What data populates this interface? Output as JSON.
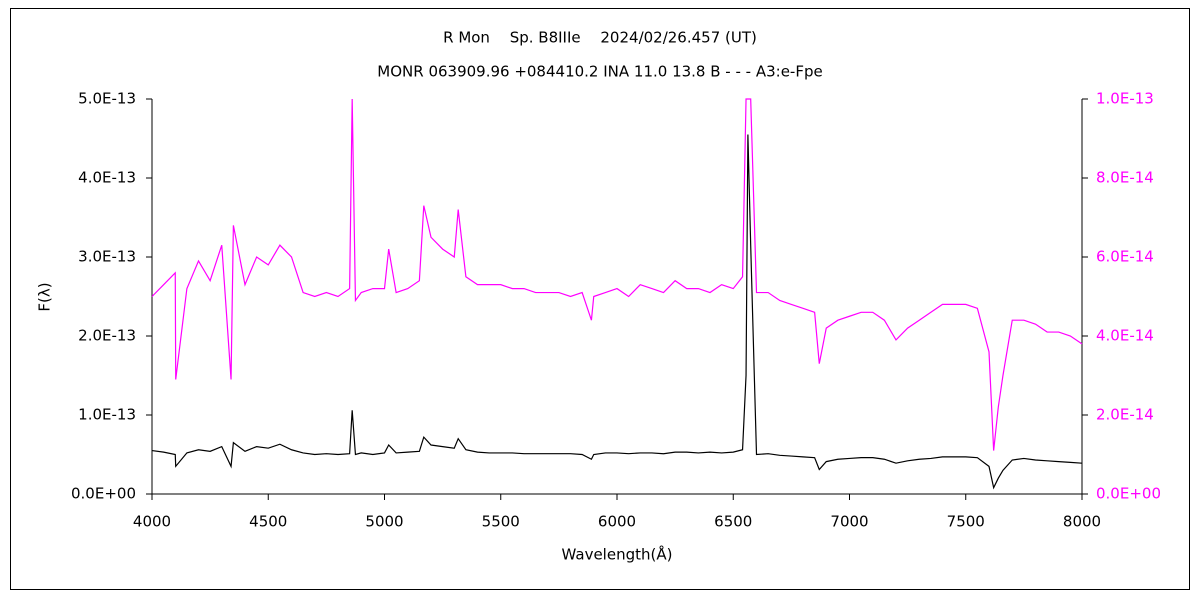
{
  "chart_data": {
    "type": "line",
    "title": "R Mon　 Sp. B8IIIe　 2024/02/26.457 (UT)",
    "subtitle": "MONR 063909.96 +084410.2 INA 11.0 13.8 B - - - A3:e-Fpe",
    "x_label": "Wavelength(Å)",
    "y_label": "F(λ)",
    "xlim": [
      4000,
      8000
    ],
    "xticks": [
      4000,
      4500,
      5000,
      5500,
      6000,
      6500,
      7000,
      7500,
      8000
    ],
    "ylim": [
      0,
      5e-13
    ],
    "yticks": [
      {
        "value": 0,
        "label": "0.0E+00"
      },
      {
        "value": 1e-13,
        "label": "1.0E-13"
      },
      {
        "value": 2e-13,
        "label": "2.0E-13"
      },
      {
        "value": 3e-13,
        "label": "3.0E-13"
      },
      {
        "value": 4e-13,
        "label": "4.0E-13"
      },
      {
        "value": 5e-13,
        "label": "5.0E-13"
      }
    ],
    "y2lim": [
      0,
      1e-13
    ],
    "y2ticks": [
      {
        "value": 0,
        "label": "0.0E+00"
      },
      {
        "value": 2e-14,
        "label": "2.0E-14"
      },
      {
        "value": 4e-14,
        "label": "4.0E-14"
      },
      {
        "value": 6e-14,
        "label": "6.0E-14"
      },
      {
        "value": 8e-14,
        "label": "8.0E-14"
      },
      {
        "value": 1e-13,
        "label": "1.0E-13"
      }
    ],
    "y2_color": "#ff00ff",
    "grid": false,
    "x": [
      4000,
      4050,
      4100,
      4102,
      4150,
      4200,
      4250,
      4300,
      4340,
      4350,
      4400,
      4450,
      4500,
      4550,
      4600,
      4650,
      4700,
      4750,
      4800,
      4850,
      4861,
      4875,
      4900,
      4950,
      5000,
      5018,
      5050,
      5100,
      5150,
      5169,
      5200,
      5250,
      5300,
      5317,
      5350,
      5400,
      5450,
      5500,
      5550,
      5600,
      5650,
      5700,
      5750,
      5800,
      5850,
      5890,
      5900,
      5950,
      6000,
      6050,
      6100,
      6150,
      6200,
      6250,
      6300,
      6350,
      6400,
      6450,
      6500,
      6540,
      6555,
      6563,
      6575,
      6600,
      6650,
      6700,
      6750,
      6800,
      6850,
      6870,
      6900,
      6950,
      7000,
      7050,
      7100,
      7150,
      7200,
      7250,
      7300,
      7350,
      7400,
      7450,
      7500,
      7550,
      7600,
      7620,
      7640,
      7660,
      7700,
      7750,
      7800,
      7850,
      7900,
      7950,
      8000
    ],
    "series": [
      {
        "color": "#ff00ff",
        "axis": "y2",
        "values": [
          5e-14,
          5.3e-14,
          5.6e-14,
          2.9e-14,
          5.2e-14,
          5.9e-14,
          5.4e-14,
          6.3e-14,
          2.9e-14,
          6.8e-14,
          5.3e-14,
          6e-14,
          5.8e-14,
          6.3e-14,
          6e-14,
          5.1e-14,
          5e-14,
          5.1e-14,
          5e-14,
          5.2e-14,
          1e-13,
          4.9e-14,
          5.1e-14,
          5.2e-14,
          5.2e-14,
          6.2e-14,
          5.1e-14,
          5.2e-14,
          5.4e-14,
          7.3e-14,
          6.5e-14,
          6.2e-14,
          6e-14,
          7.2e-14,
          5.5e-14,
          5.3e-14,
          5.3e-14,
          5.3e-14,
          5.2e-14,
          5.2e-14,
          5.1e-14,
          5.1e-14,
          5.1e-14,
          5e-14,
          5.1e-14,
          4.4e-14,
          5e-14,
          5.1e-14,
          5.2e-14,
          5e-14,
          5.3e-14,
          5.2e-14,
          5.1e-14,
          5.4e-14,
          5.2e-14,
          5.2e-14,
          5.1e-14,
          5.3e-14,
          5.2e-14,
          5.5e-14,
          1e-13,
          1e-13,
          1e-13,
          5.1e-14,
          5.1e-14,
          4.9e-14,
          4.8e-14,
          4.7e-14,
          4.6e-14,
          3.3e-14,
          4.2e-14,
          4.4e-14,
          4.5e-14,
          4.6e-14,
          4.6e-14,
          4.4e-14,
          3.9e-14,
          4.2e-14,
          4.4e-14,
          4.6e-14,
          4.8e-14,
          4.8e-14,
          4.8e-14,
          4.7e-14,
          3.6e-14,
          1.1e-14,
          2.2e-14,
          3e-14,
          4.4e-14,
          4.4e-14,
          4.3e-14,
          4.1e-14,
          4.1e-14,
          4e-14,
          3.8e-14
        ]
      },
      {
        "color": "#000000",
        "values": [
          5.5e-14,
          5.3e-14,
          5e-14,
          3.5e-14,
          5.2e-14,
          5.6e-14,
          5.4e-14,
          6e-14,
          3.5e-14,
          6.5e-14,
          5.4e-14,
          6e-14,
          5.8e-14,
          6.3e-14,
          5.6e-14,
          5.2e-14,
          5e-14,
          5.1e-14,
          5e-14,
          5.1e-14,
          1.06e-13,
          5e-14,
          5.2e-14,
          5e-14,
          5.2e-14,
          6.2e-14,
          5.2e-14,
          5.3e-14,
          5.4e-14,
          7.2e-14,
          6.2e-14,
          6e-14,
          5.8e-14,
          7e-14,
          5.6e-14,
          5.3e-14,
          5.2e-14,
          5.2e-14,
          5.2e-14,
          5.1e-14,
          5.1e-14,
          5.1e-14,
          5.1e-14,
          5.1e-14,
          5e-14,
          4.4e-14,
          5e-14,
          5.2e-14,
          5.2e-14,
          5.1e-14,
          5.2e-14,
          5.2e-14,
          5.1e-14,
          5.3e-14,
          5.3e-14,
          5.2e-14,
          5.3e-14,
          5.2e-14,
          5.3e-14,
          5.6e-14,
          1.5e-13,
          4.55e-13,
          3.15e-13,
          5e-14,
          5.1e-14,
          4.9e-14,
          4.8e-14,
          4.7e-14,
          4.6e-14,
          3.1e-14,
          4.1e-14,
          4.4e-14,
          4.5e-14,
          4.6e-14,
          4.6e-14,
          4.4e-14,
          3.9e-14,
          4.2e-14,
          4.4e-14,
          4.5e-14,
          4.7e-14,
          4.7e-14,
          4.7e-14,
          4.6e-14,
          3.5e-14,
          8e-15,
          2e-14,
          3e-14,
          4.3e-14,
          4.5e-14,
          4.3e-14,
          4.2e-14,
          4.1e-14,
          4e-14,
          3.9e-14
        ]
      }
    ]
  }
}
